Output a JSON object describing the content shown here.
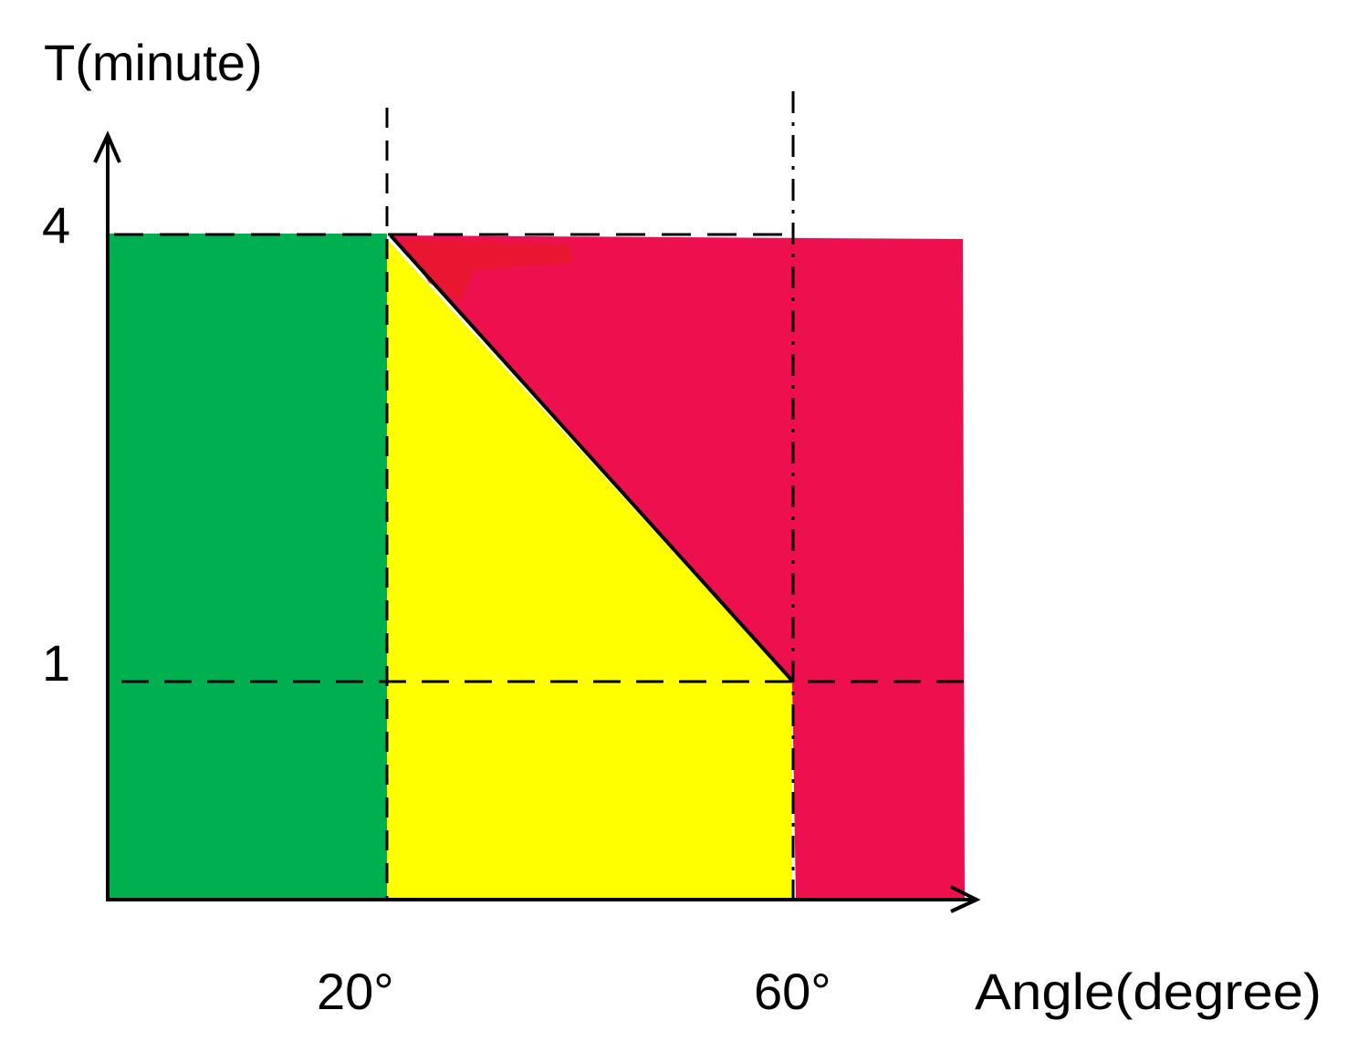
{
  "y_axis": {
    "label": "T(minute)",
    "ticks": [
      {
        "label": "4",
        "value": 4
      },
      {
        "label": "1",
        "value": 1
      }
    ]
  },
  "x_axis": {
    "label": "Angle(degree)",
    "ticks": [
      {
        "label": "20°",
        "value": 20
      },
      {
        "label": "60°",
        "value": 60
      }
    ]
  },
  "regions": [
    {
      "id": "green",
      "color": "#00b050"
    },
    {
      "id": "yellow",
      "color": "#ffff00"
    },
    {
      "id": "red",
      "color": "#ee0f4f"
    }
  ],
  "boundary_line": {
    "from": {
      "angle": 20,
      "time": 4
    },
    "to": {
      "angle": 60,
      "time": 1
    }
  }
}
